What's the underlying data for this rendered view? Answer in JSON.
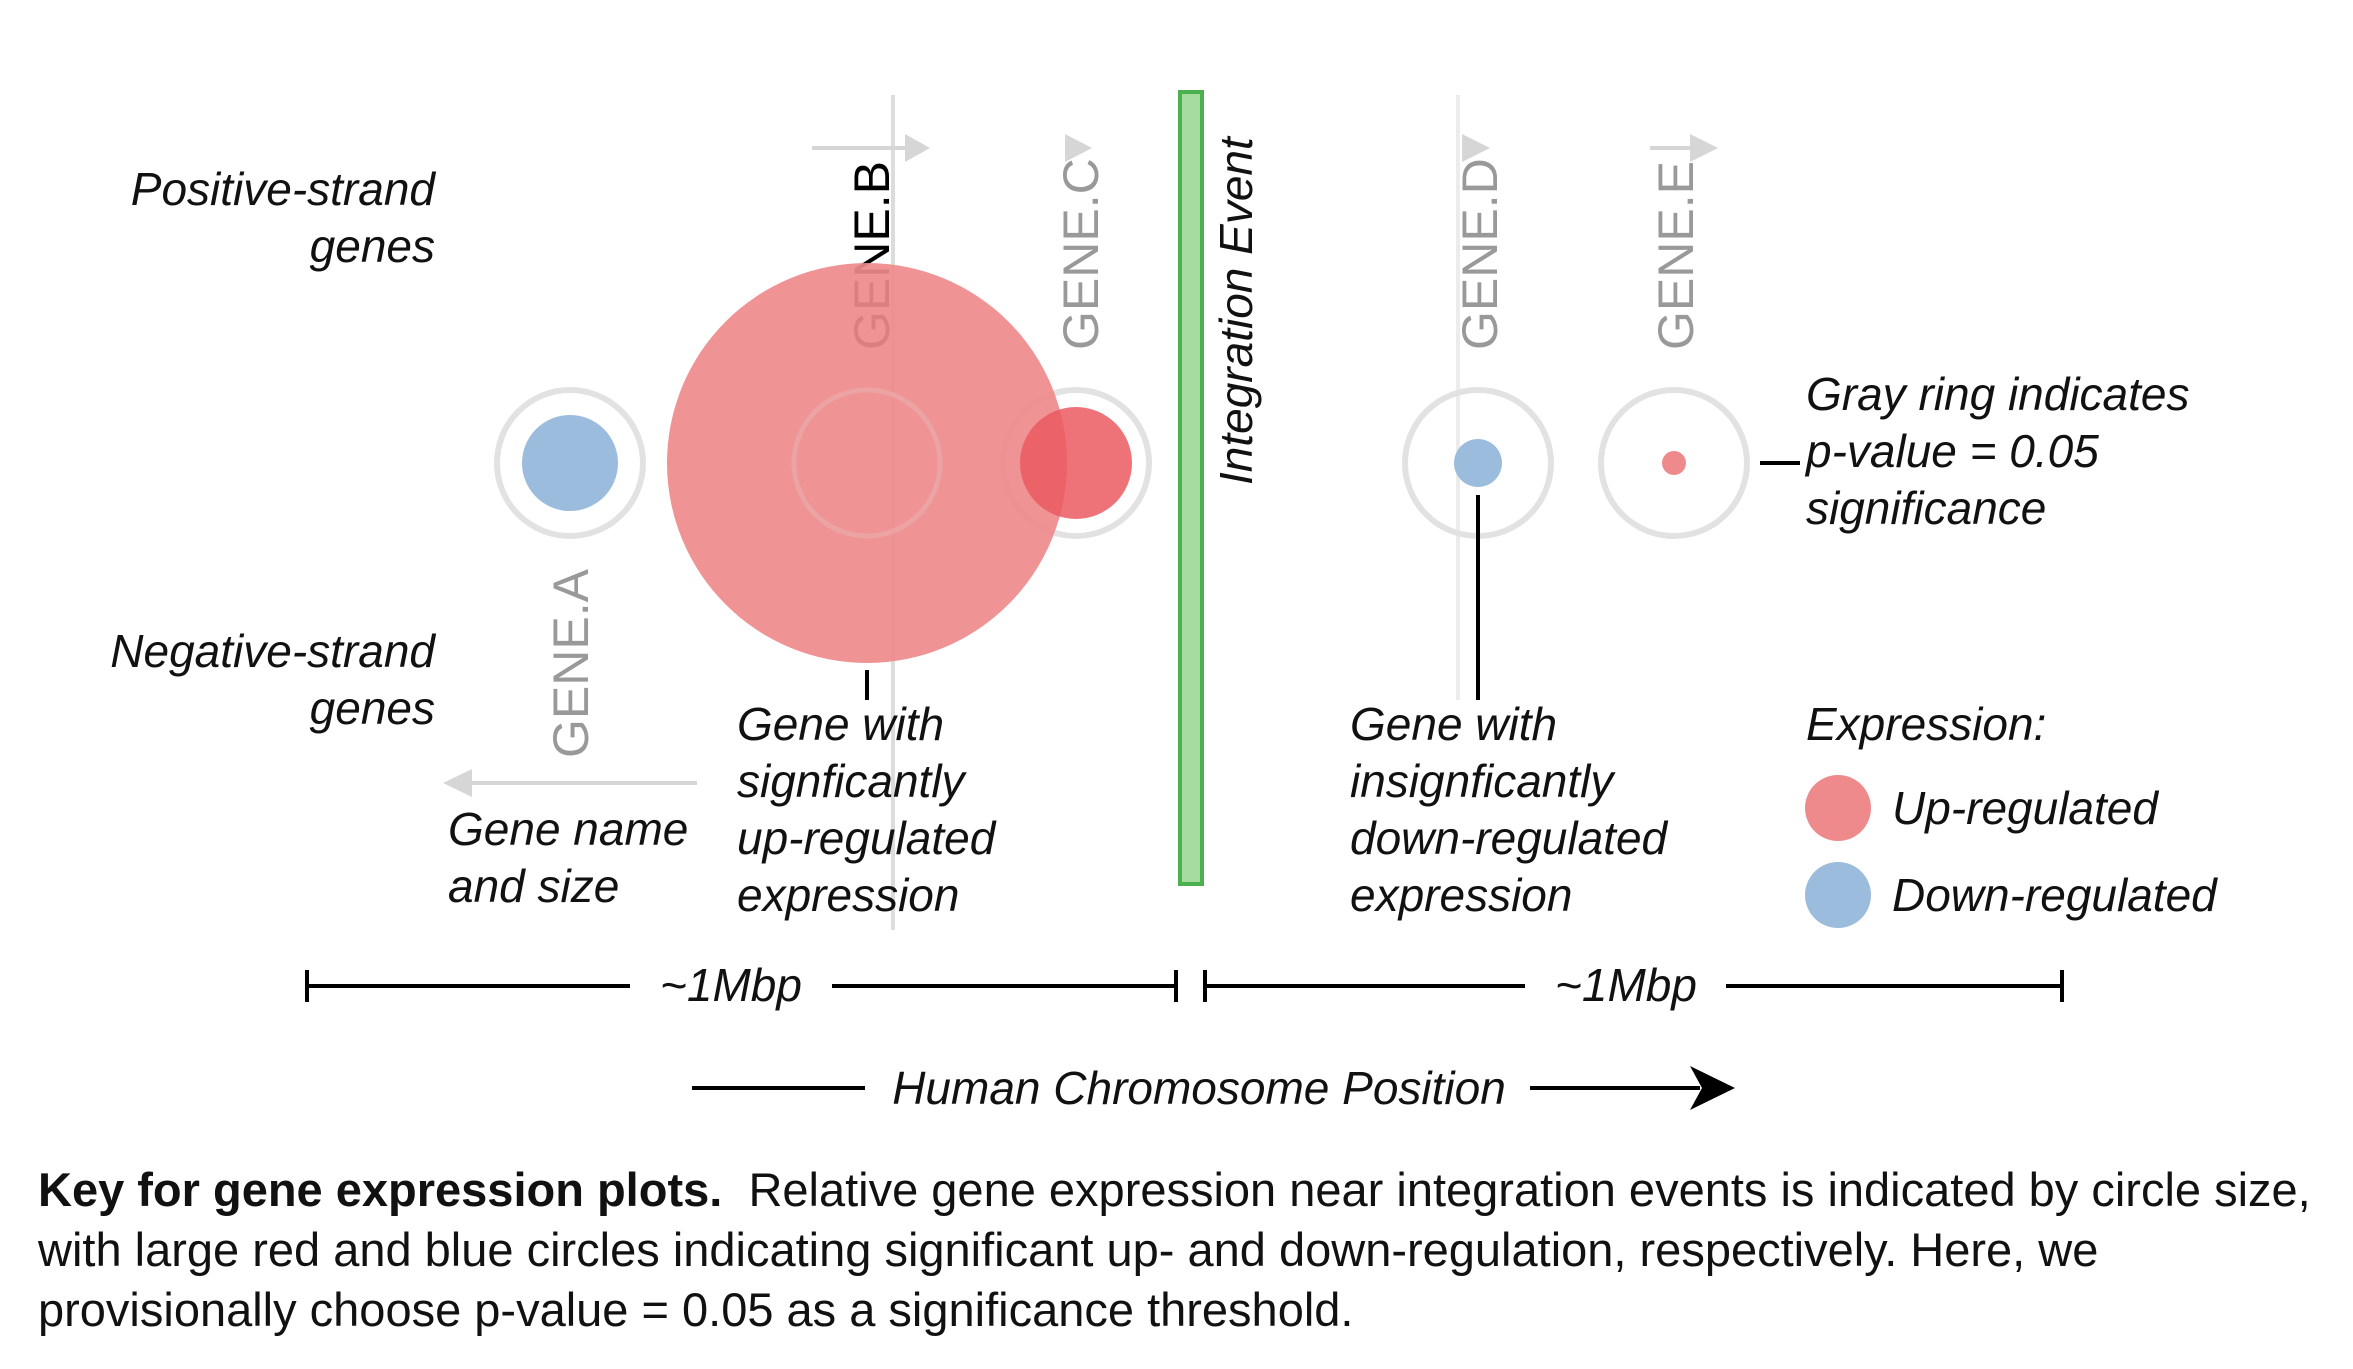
{
  "strand_labels": {
    "positive_1": "Positive-strand",
    "positive_2": "genes",
    "negative_1": "Negative-strand",
    "negative_2": "genes"
  },
  "genes": [
    {
      "name": "GENE.A",
      "strand": "negative",
      "expression": "down-regulated",
      "significant": true,
      "highlight": false
    },
    {
      "name": "GENE.B",
      "strand": "positive",
      "expression": "up-regulated",
      "significant": true,
      "highlight": true
    },
    {
      "name": "GENE.C",
      "strand": "positive",
      "expression": "up-regulated",
      "significant": true,
      "highlight": false
    },
    {
      "name": "GENE.D",
      "strand": "positive",
      "expression": "down-regulated",
      "significant": false,
      "highlight": false
    },
    {
      "name": "GENE.E",
      "strand": "positive",
      "expression": "up-regulated",
      "significant": false,
      "highlight": false
    }
  ],
  "integration_event_label": "Integration Event",
  "annotations": {
    "gene_name_size": [
      "Gene name",
      "and size"
    ],
    "significant_up": [
      "Gene with",
      "signficantly",
      "up-regulated",
      "expression"
    ],
    "insignificant_down": [
      "Gene with",
      "insignficantly",
      "down-regulated",
      "expression"
    ],
    "gray_ring": [
      "Gray ring indicates",
      "p-value = 0.05",
      "significance"
    ]
  },
  "legend": {
    "title": "Expression:",
    "up": "Up-regulated",
    "down": "Down-regulated"
  },
  "colors": {
    "up": "#ee8a8c",
    "down": "#9bbcdc",
    "ring": "#e2e2e2",
    "integration": "#a6dca0",
    "integration_border": "#4caf50",
    "gene_line": "#d9d9d9"
  },
  "scale": {
    "left_label": "~1Mbp",
    "right_label": "~1Mbp"
  },
  "axis_label": "Human Chromosome Position",
  "caption": {
    "bold": "Key for gene expression plots.",
    "text": "Relative gene expression near integration events is indicated by circle size, with large red and blue circles indicating significant up- and down-regulation, respectively. Here, we provisionally choose p-value = 0.05 as a significance threshold."
  }
}
